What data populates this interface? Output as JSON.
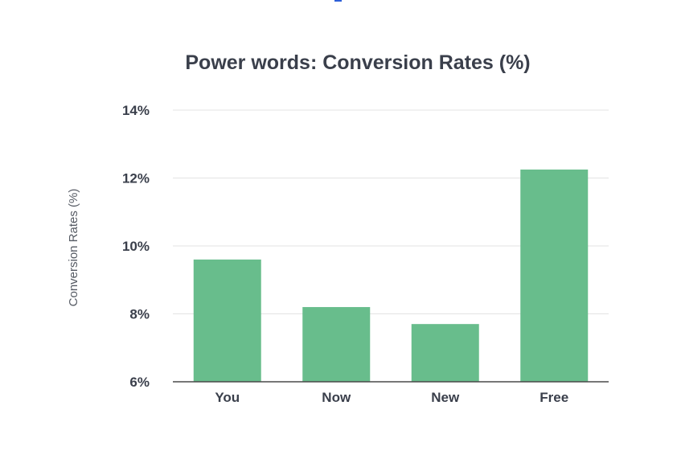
{
  "chart_data": {
    "type": "bar",
    "title": "Power words: Conversion Rates (%)",
    "xlabel": "",
    "ylabel": "Conversion Rates (%)",
    "categories": [
      "You",
      "Now",
      "New",
      "Free"
    ],
    "values": [
      9.6,
      8.2,
      7.7,
      12.25
    ],
    "ylim": [
      6,
      14
    ],
    "yticks": [
      6,
      8,
      10,
      12,
      14
    ],
    "ytick_labels": [
      "6%",
      "8%",
      "10%",
      "12%",
      "14%"
    ],
    "grid": true,
    "legend": "none",
    "bar_color": "#68bd8c"
  }
}
